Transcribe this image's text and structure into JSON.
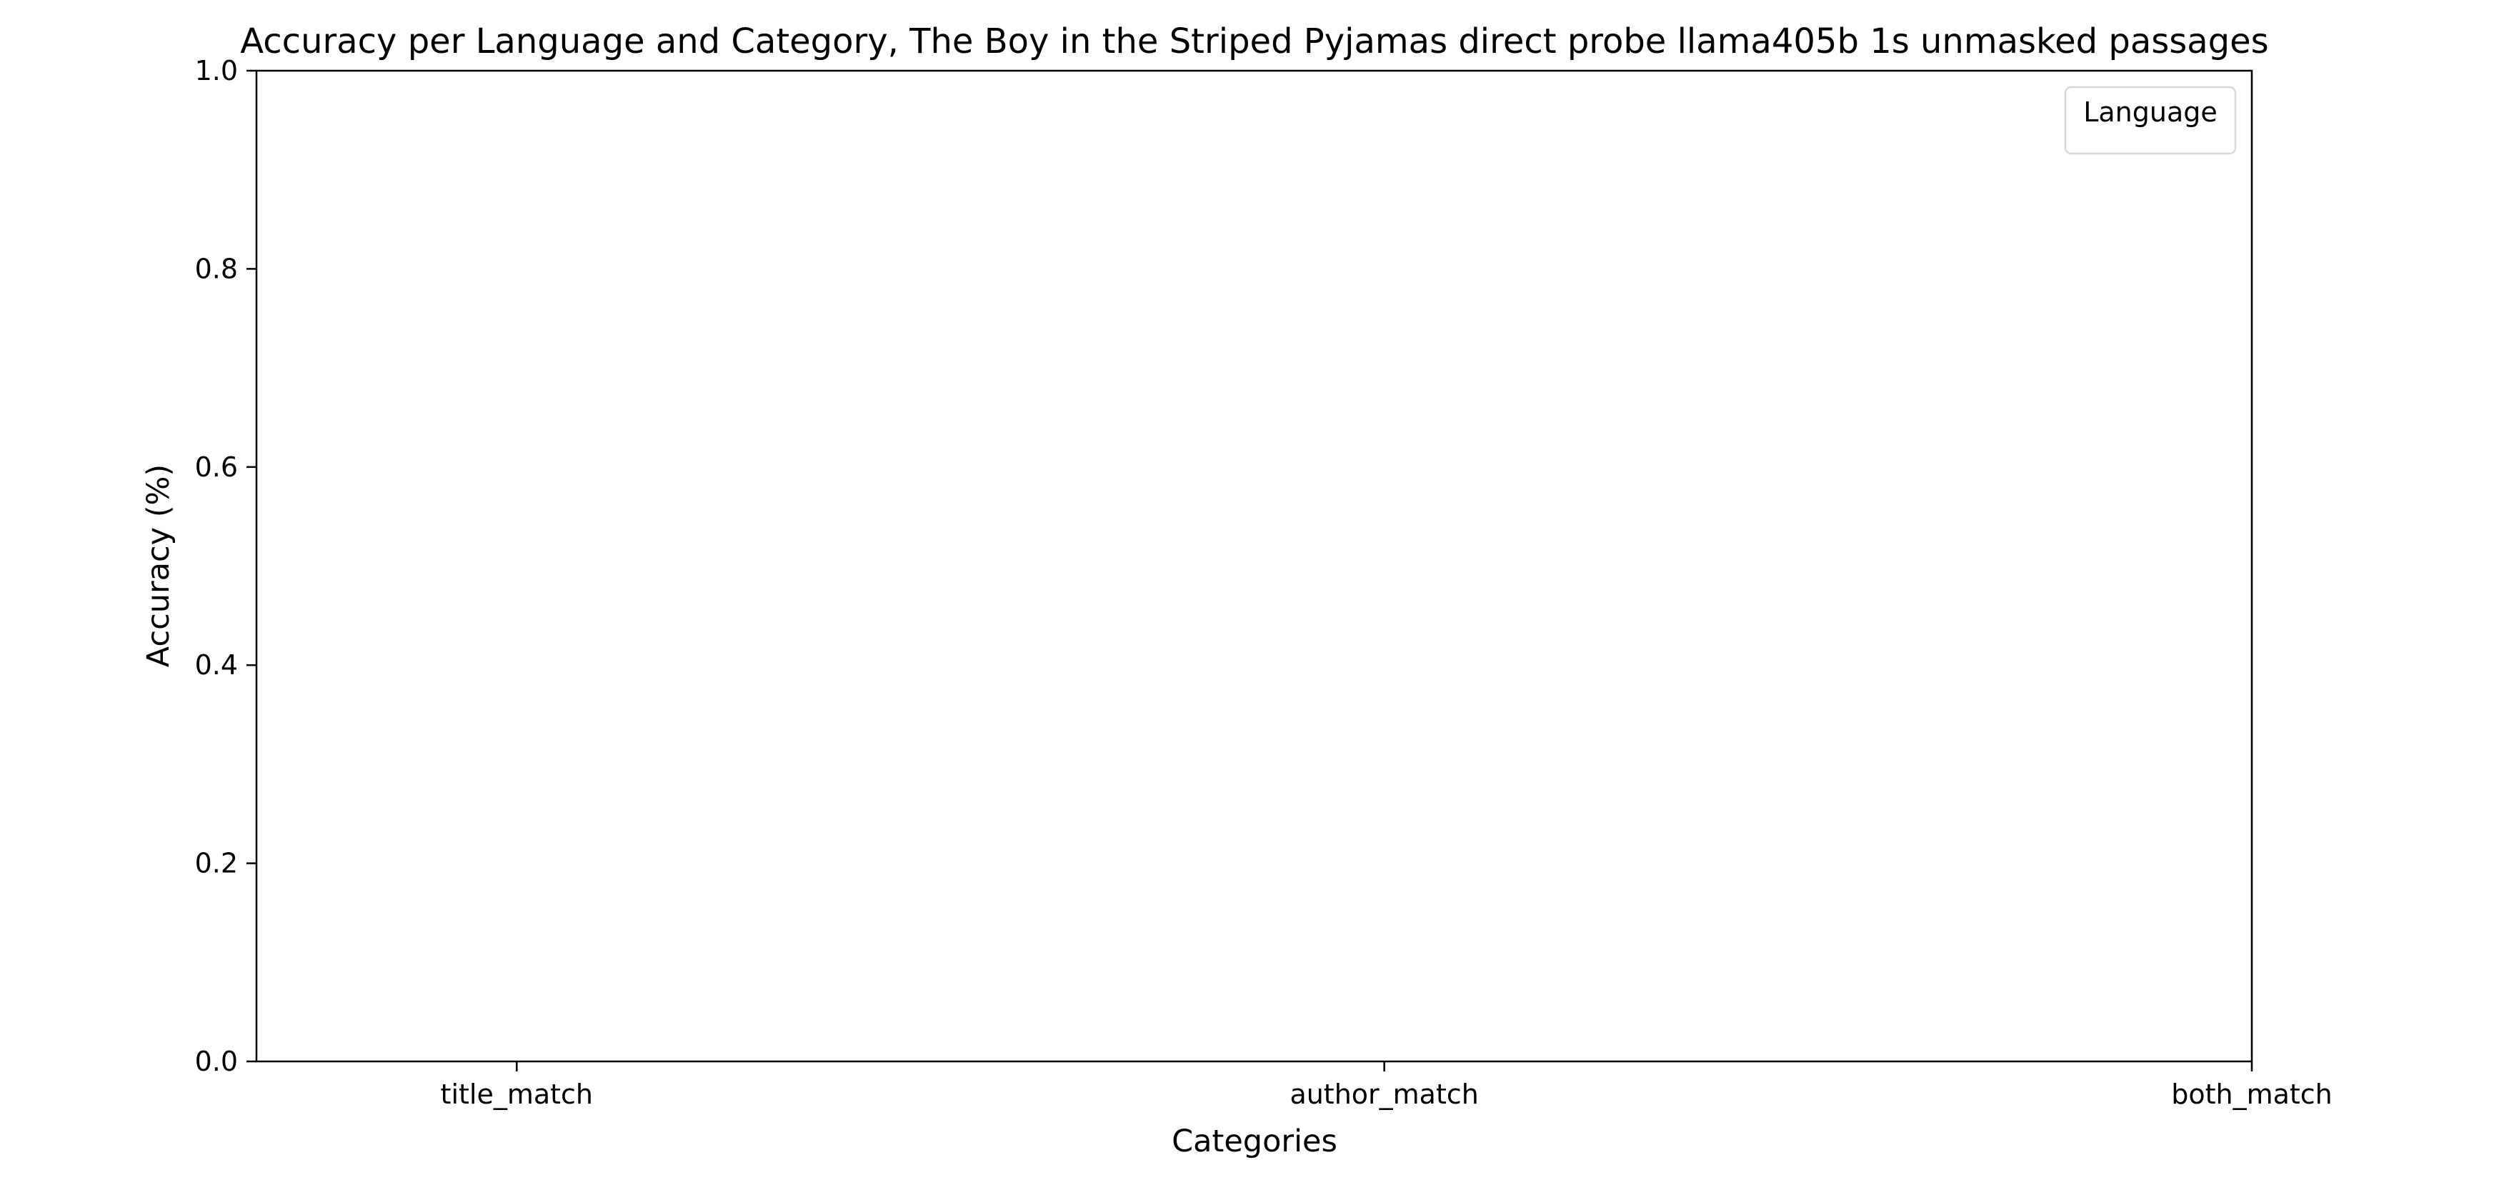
{
  "chart_data": {
    "type": "bar",
    "title": "Accuracy per Language and Category, The Boy in the Striped Pyjamas direct probe llama405b 1s unmasked passages",
    "xlabel": "Categories",
    "ylabel": "Accuracy (%)",
    "categories": [
      "title_match",
      "author_match",
      "both_match"
    ],
    "series": [],
    "ylim": [
      0.0,
      1.0
    ],
    "yticks": [
      "0.0",
      "0.2",
      "0.4",
      "0.6",
      "0.8",
      "1.0"
    ],
    "grid": false,
    "legend": {
      "title": "Language",
      "placement": "top-right",
      "entries": []
    }
  }
}
